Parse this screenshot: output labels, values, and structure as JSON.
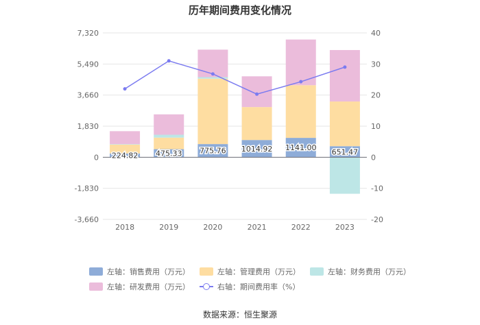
{
  "title": "历年期间费用变化情况",
  "source": "数据来源：恒生聚源",
  "chart_data": {
    "type": "bar",
    "stacked": true,
    "categories": [
      "2018",
      "2019",
      "2020",
      "2021",
      "2022",
      "2023"
    ],
    "left_axis": {
      "ticks": [
        "7,320",
        "5,490",
        "3,660",
        "1,830",
        "0",
        "-1,830",
        "-3,660"
      ],
      "range": [
        -3660,
        7320
      ]
    },
    "right_axis": {
      "ticks": [
        "40",
        "30",
        "20",
        "10",
        "0",
        "-10",
        "-20"
      ],
      "range": [
        -20,
        40
      ]
    },
    "series": [
      {
        "name": "左轴：销售费用（万元）",
        "color": "#8eacd8",
        "values": [
          224.82,
          475.33,
          775.76,
          1014.92,
          1141.0,
          651.47
        ],
        "labels": [
          "224.82",
          "475.33",
          "775.76",
          "1014.92",
          "1141.00",
          "651.47"
        ]
      },
      {
        "name": "左轴：管理费用（万元）",
        "color": "#fedda1",
        "values": [
          520,
          680,
          3850,
          1940,
          3100,
          2630
        ]
      },
      {
        "name": "左轴：财务费用（万元）",
        "color": "#bde6e6",
        "values": [
          30,
          170,
          90,
          0,
          0,
          -2150
        ]
      },
      {
        "name": "左轴：研发费用（万元）",
        "color": "#ebbcdb",
        "values": [
          760,
          1200,
          1620,
          1810,
          2690,
          3030
        ]
      }
    ],
    "line": {
      "name": "右轴：期间费用率（%）",
      "color": "#7b7bf0",
      "values": [
        22,
        31,
        26.8,
        20.3,
        24.3,
        29
      ]
    },
    "grid": true,
    "legend_position": "bottom"
  }
}
